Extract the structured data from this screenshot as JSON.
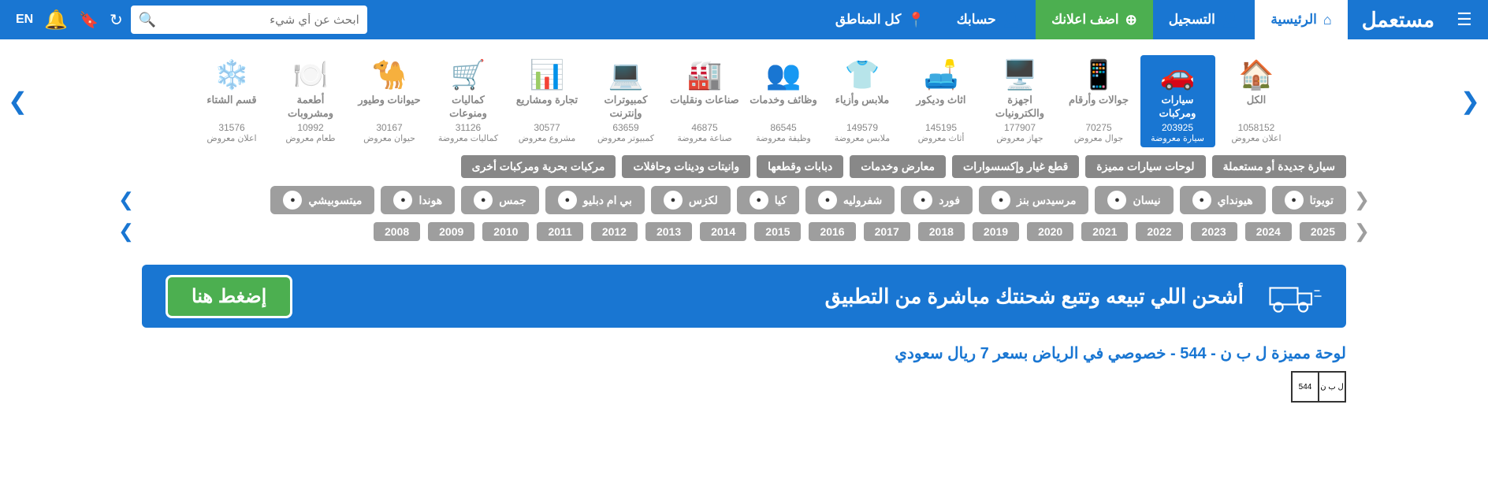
{
  "topnav": {
    "logo": "مستعمل",
    "home": "الرئيسية",
    "signup": "التسجيل",
    "add_ad": "اضف اعلانك",
    "account": "حسابك",
    "regions": "كل المناطق",
    "search_placeholder": "ابحث عن أي شيء",
    "lang": "EN"
  },
  "categories": [
    {
      "title": "الكل",
      "count": "1058152",
      "sub": "اعلان معروض",
      "icon": "🏠"
    },
    {
      "title": "سيارات ومركبات",
      "count": "203925",
      "sub": "سيارة معروضة",
      "icon": "🚗",
      "active": true
    },
    {
      "title": "جوالات وأرقام",
      "count": "70275",
      "sub": "جوال معروض",
      "icon": "📱"
    },
    {
      "title": "اجهزة والكترونيات",
      "count": "177907",
      "sub": "جهاز معروض",
      "icon": "🖥️"
    },
    {
      "title": "اثاث وديكور",
      "count": "145195",
      "sub": "أثاث معروض",
      "icon": "🛋️"
    },
    {
      "title": "ملابس وأزياء",
      "count": "149579",
      "sub": "ملابس معروضة",
      "icon": "👕"
    },
    {
      "title": "وظائف وخدمات",
      "count": "86545",
      "sub": "وظيفة معروضة",
      "icon": "👥"
    },
    {
      "title": "صناعات ونقليات",
      "count": "46875",
      "sub": "صناعة معروضة",
      "icon": "🏭"
    },
    {
      "title": "كمبيوترات وإنترنت",
      "count": "63659",
      "sub": "كمبيوتر معروض",
      "icon": "💻"
    },
    {
      "title": "تجارة ومشاريع",
      "count": "30577",
      "sub": "مشروع معروض",
      "icon": "📊"
    },
    {
      "title": "كماليات ومنوعات",
      "count": "31126",
      "sub": "كماليات معروضة",
      "icon": "🛒"
    },
    {
      "title": "حيوانات وطيور",
      "count": "30167",
      "sub": "حيوان معروض",
      "icon": "🐪"
    },
    {
      "title": "أطعمة ومشروبات",
      "count": "10992",
      "sub": "طعام معروض",
      "icon": "🍽️"
    },
    {
      "title": "قسم الشتاء",
      "count": "31576",
      "sub": "اعلان معروض",
      "icon": "❄️"
    }
  ],
  "subtabs": [
    "سيارة جديدة أو مستعملة",
    "لوحات سيارات مميزة",
    "قطع غيار وإكسسوارات",
    "معارض وخدمات",
    "دبابات وقطعها",
    "وانيتات ودينات وحافلات",
    "مركبات بحرية ومركبات أخرى"
  ],
  "brands": [
    {
      "name": "تويوتا"
    },
    {
      "name": "هيونداي"
    },
    {
      "name": "نيسان"
    },
    {
      "name": "مرسيدس بنز"
    },
    {
      "name": "فورد"
    },
    {
      "name": "شفروليه"
    },
    {
      "name": "كيا"
    },
    {
      "name": "لكزس"
    },
    {
      "name": "بي ام دبليو"
    },
    {
      "name": "جمس"
    },
    {
      "name": "هوندا"
    },
    {
      "name": "ميتسوبيشي"
    }
  ],
  "years": [
    "2025",
    "2024",
    "2023",
    "2022",
    "2021",
    "2020",
    "2019",
    "2018",
    "2017",
    "2016",
    "2015",
    "2014",
    "2013",
    "2012",
    "2011",
    "2010",
    "2009",
    "2008"
  ],
  "banner": {
    "text": "أشحن اللي تبيعه وتتبع شحنتك مباشرة من التطبيق",
    "button": "إضغط هنا"
  },
  "listing": {
    "title": "لوحة مميزة ل ب ن - 544 - خصوصي في الرياض بسعر 7 ريال سعودي",
    "plate_letters": "ل ب ن",
    "plate_numbers": "544"
  }
}
